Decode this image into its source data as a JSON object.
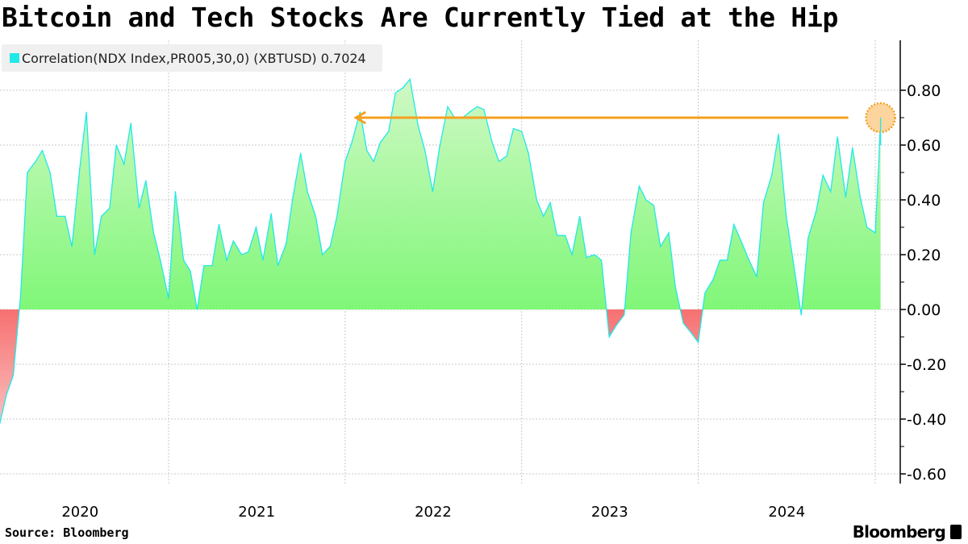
{
  "title": "Bitcoin and Tech Stocks Are Currently Tied at the Hip",
  "source": "Source:  Bloomberg",
  "logo": "Bloomberg",
  "colors": {
    "line": "#22e8e8",
    "positive_fill": "#86f77c",
    "negative_fill": "#f77a7a",
    "annotation": "#f5a020"
  },
  "chart_data": {
    "type": "area",
    "legend": {
      "label": "Correlation(NDX Index,PR005,30,0) (XBTUSD) 0.7024",
      "placement": "top-left"
    },
    "series": [
      {
        "name": "Correlation(NDX Index,PR005,30,0) (XBTUSD)",
        "last_value": 0.7024
      }
    ],
    "yaxis": {
      "side": "right",
      "ylim": [
        -0.64,
        0.98
      ],
      "ticks": [
        "0.80",
        "0.60",
        "0.40",
        "0.20",
        "0.00",
        "-0.20",
        "-0.40",
        "-0.60"
      ],
      "tick_values": [
        0.8,
        0.6,
        0.4,
        0.2,
        0,
        -0.2,
        -0.4,
        -0.6
      ]
    },
    "xaxis": {
      "ticks": [
        "2020",
        "2021",
        "2022",
        "2023",
        "2024"
      ],
      "gridlines_at": [
        "2021-01-01",
        "2022-01-01",
        "2023-01-01",
        "2024-01-01",
        "2025-01-01"
      ]
    },
    "grid": true,
    "annotation": {
      "type": "arrow-and-circle",
      "value": 0.7,
      "from": "2025-01-12",
      "to": "2022-01-20"
    },
    "x": [
      "2020-01-15",
      "2020-02-01",
      "2020-02-15",
      "2020-03-01",
      "2020-03-15",
      "2020-04-01",
      "2020-04-15",
      "2020-05-01",
      "2020-05-15",
      "2020-06-01",
      "2020-06-15",
      "2020-07-01",
      "2020-07-15",
      "2020-08-01",
      "2020-08-15",
      "2020-09-01",
      "2020-09-15",
      "2020-10-01",
      "2020-10-15",
      "2020-11-01",
      "2020-11-15",
      "2020-12-01",
      "2020-12-15",
      "2021-01-01",
      "2021-01-15",
      "2021-02-01",
      "2021-02-15",
      "2021-03-01",
      "2021-03-15",
      "2021-04-01",
      "2021-04-15",
      "2021-05-01",
      "2021-05-15",
      "2021-06-01",
      "2021-06-15",
      "2021-07-01",
      "2021-07-15",
      "2021-08-01",
      "2021-08-15",
      "2021-09-01",
      "2021-09-15",
      "2021-10-01",
      "2021-10-15",
      "2021-11-01",
      "2021-11-15",
      "2021-12-01",
      "2021-12-15",
      "2022-01-01",
      "2022-01-15",
      "2022-02-01",
      "2022-02-15",
      "2022-03-01",
      "2022-03-15",
      "2022-04-01",
      "2022-04-15",
      "2022-05-01",
      "2022-05-15",
      "2022-06-01",
      "2022-06-15",
      "2022-07-01",
      "2022-07-15",
      "2022-08-01",
      "2022-08-15",
      "2022-09-01",
      "2022-09-15",
      "2022-10-01",
      "2022-10-15",
      "2022-11-01",
      "2022-11-15",
      "2022-12-01",
      "2022-12-15",
      "2023-01-01",
      "2023-01-15",
      "2023-02-01",
      "2023-02-15",
      "2023-03-01",
      "2023-03-15",
      "2023-04-01",
      "2023-04-15",
      "2023-05-01",
      "2023-05-15",
      "2023-06-01",
      "2023-06-15",
      "2023-07-01",
      "2023-07-15",
      "2023-08-01",
      "2023-08-15",
      "2023-09-01",
      "2023-09-15",
      "2023-10-01",
      "2023-10-15",
      "2023-11-01",
      "2023-11-15",
      "2023-12-01",
      "2023-12-15",
      "2024-01-01",
      "2024-01-15",
      "2024-02-01",
      "2024-02-15",
      "2024-03-01",
      "2024-03-15",
      "2024-04-01",
      "2024-04-15",
      "2024-05-01",
      "2024-05-15",
      "2024-06-01",
      "2024-06-15",
      "2024-07-01",
      "2024-07-15",
      "2024-08-01",
      "2024-08-15",
      "2024-09-01",
      "2024-09-15",
      "2024-10-01",
      "2024-10-15",
      "2024-11-01",
      "2024-11-15",
      "2024-12-01",
      "2024-12-15",
      "2025-01-01",
      "2025-01-08",
      "2025-01-12"
    ],
    "values": [
      -0.44,
      -0.31,
      -0.24,
      0.05,
      0.5,
      0.54,
      0.58,
      0.5,
      0.34,
      0.34,
      0.23,
      0.51,
      0.72,
      0.2,
      0.34,
      0.37,
      0.6,
      0.53,
      0.68,
      0.37,
      0.47,
      0.28,
      0.18,
      0.04,
      0.43,
      0.18,
      0.14,
      0.0,
      0.16,
      0.16,
      0.31,
      0.18,
      0.25,
      0.2,
      0.21,
      0.3,
      0.18,
      0.35,
      0.16,
      0.24,
      0.41,
      0.57,
      0.43,
      0.34,
      0.2,
      0.23,
      0.34,
      0.54,
      0.61,
      0.72,
      0.58,
      0.54,
      0.61,
      0.65,
      0.79,
      0.81,
      0.84,
      0.67,
      0.58,
      0.43,
      0.59,
      0.74,
      0.7,
      0.7,
      0.72,
      0.74,
      0.73,
      0.61,
      0.54,
      0.56,
      0.66,
      0.65,
      0.57,
      0.4,
      0.34,
      0.39,
      0.27,
      0.27,
      0.2,
      0.34,
      0.19,
      0.2,
      0.18,
      -0.1,
      -0.06,
      -0.02,
      0.28,
      0.45,
      0.4,
      0.38,
      0.23,
      0.28,
      0.08,
      -0.05,
      -0.08,
      -0.12,
      0.06,
      0.11,
      0.18,
      0.18,
      0.31,
      0.24,
      0.18,
      0.12,
      0.39,
      0.49,
      0.64,
      0.34,
      0.18,
      -0.02,
      0.26,
      0.36,
      0.49,
      0.43,
      0.63,
      0.41,
      0.59,
      0.41,
      0.3,
      0.28,
      0.52,
      0.7024
    ]
  }
}
